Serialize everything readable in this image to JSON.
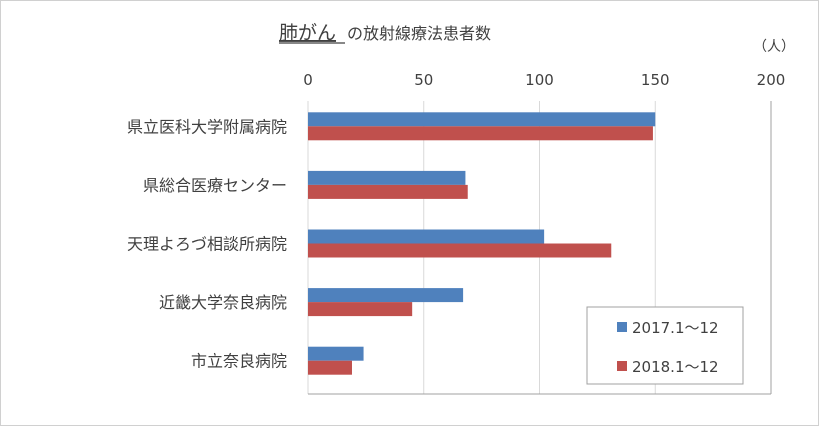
{
  "chart_data": {
    "type": "bar",
    "orientation": "horizontal",
    "title_emphasis": "肺がん",
    "title_rest": "の放射線療法患者数",
    "unit": "（人）",
    "categories": [
      "県立医科大学附属病院",
      "県総合医療センター",
      "天理よろづ相談所病院",
      "近畿大学奈良病院",
      "市立奈良病院"
    ],
    "series": [
      {
        "name": "2017.1～12",
        "color": "#4f81bd",
        "values": [
          150,
          68,
          102,
          67,
          24
        ]
      },
      {
        "name": "2018.1～12",
        "color": "#c0504d",
        "values": [
          149,
          69,
          131,
          45,
          19
        ]
      }
    ],
    "xlim": [
      0,
      200
    ],
    "xticks": [
      "0",
      "50",
      "100",
      "150",
      "200"
    ],
    "xaxis_position": "top",
    "grid": true,
    "legend": "bottom-right"
  }
}
